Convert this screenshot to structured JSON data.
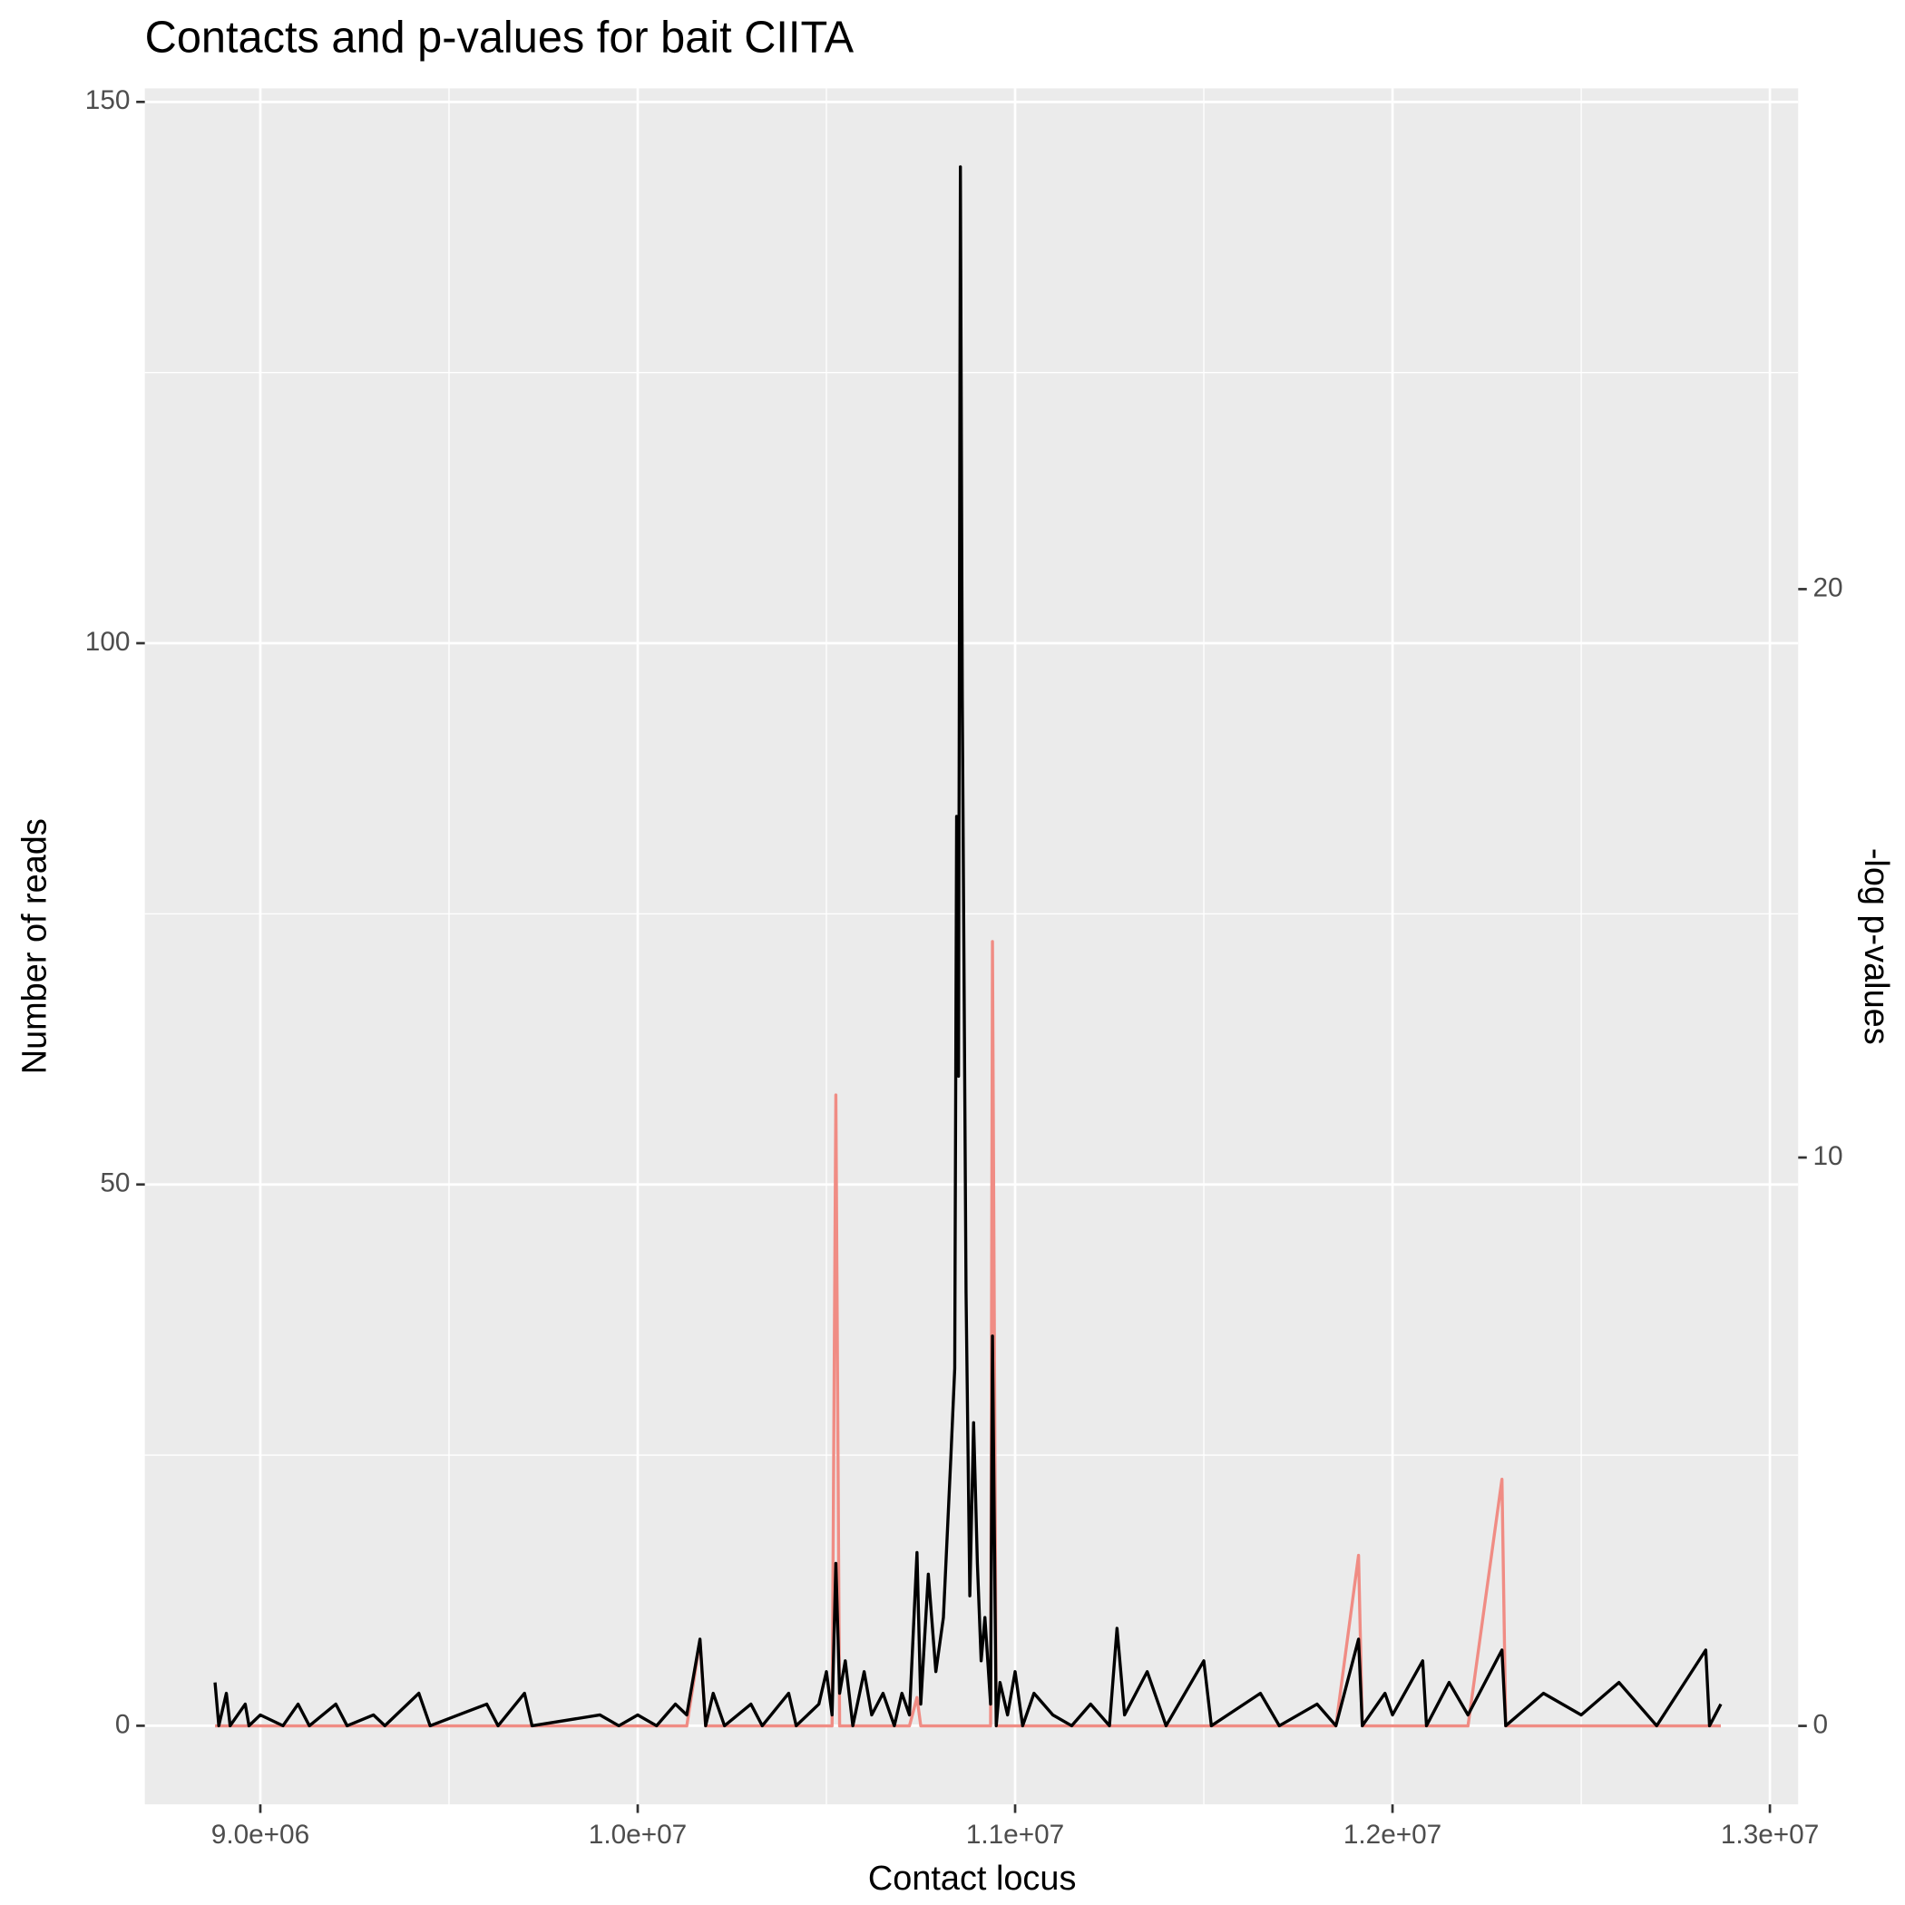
{
  "chart_data": {
    "type": "line",
    "title": "Contacts and p-values for bait CIITA",
    "xlabel": "Contact locus",
    "ylabel": "Number of reads",
    "y2label": "-log p-values",
    "x": [
      8880000,
      8890000,
      8910000,
      8920000,
      8960000,
      8970000,
      9000000,
      9060000,
      9100000,
      9130000,
      9200000,
      9230000,
      9300000,
      9330000,
      9420000,
      9450000,
      9600000,
      9630000,
      9700000,
      9720000,
      9900000,
      9950000,
      10000000,
      10050000,
      10100000,
      10130000,
      10165000,
      10180000,
      10200000,
      10230000,
      10300000,
      10330000,
      10400000,
      10420000,
      10480000,
      10500000,
      10515000,
      10525000,
      10535000,
      10550000,
      10570000,
      10600000,
      10620000,
      10650000,
      10680000,
      10700000,
      10720000,
      10740000,
      10750000,
      10770000,
      10790000,
      10810000,
      10830000,
      10840000,
      10845000,
      10850000,
      10855000,
      10860000,
      10870000,
      10880000,
      10890000,
      10900000,
      10910000,
      10920000,
      10935000,
      10940000,
      10950000,
      10960000,
      10980000,
      11000000,
      11020000,
      11050000,
      11100000,
      11150000,
      11200000,
      11250000,
      11270000,
      11290000,
      11350000,
      11400000,
      11500000,
      11520000,
      11650000,
      11700000,
      11800000,
      11850000,
      11910000,
      11920000,
      11980000,
      12000000,
      12080000,
      12090000,
      12150000,
      12200000,
      12290000,
      12300000,
      12400000,
      12500000,
      12600000,
      12700000,
      12830000,
      12840000,
      12870000
    ],
    "series": [
      {
        "color": "#f08c84",
        "axis": "y2",
        "values": [
          0,
          0,
          0,
          0,
          0,
          0,
          0,
          0,
          0,
          0,
          0,
          0,
          0,
          0,
          0,
          0,
          0,
          0,
          0,
          0,
          0,
          0,
          0,
          0,
          0,
          0,
          1.5,
          0,
          0,
          0,
          0,
          0,
          0,
          0,
          0,
          0,
          0,
          11.1,
          0,
          0,
          0,
          0,
          0,
          0,
          0,
          0,
          0,
          0.5,
          0,
          0,
          0,
          0,
          0,
          0,
          0,
          0,
          0,
          0,
          0,
          0,
          0,
          0,
          0,
          0,
          0,
          13.8,
          0,
          0,
          0,
          0,
          0,
          0,
          0,
          0,
          0,
          0,
          0,
          0,
          0,
          0,
          0,
          0,
          0,
          0,
          0,
          0,
          3.0,
          0,
          0,
          0,
          0,
          0,
          0,
          0,
          4.34,
          0,
          0,
          0,
          0,
          0,
          0,
          0,
          0
        ]
      },
      {
        "color": "#000000",
        "values": [
          4,
          0,
          3,
          0,
          2,
          0,
          1,
          0,
          2,
          0,
          2,
          0,
          1,
          0,
          3,
          0,
          2,
          0,
          3,
          0,
          1,
          0,
          1,
          0,
          2,
          1,
          8,
          0,
          3,
          0,
          2,
          0,
          3,
          0,
          2,
          5,
          1,
          15,
          3,
          6,
          0,
          5,
          1,
          3,
          0,
          3,
          1,
          16,
          2,
          14,
          5,
          10,
          25,
          33,
          84,
          60,
          144,
          95,
          40,
          12,
          28,
          15,
          6,
          10,
          2,
          36,
          0,
          4,
          1,
          5,
          0,
          3,
          1,
          0,
          2,
          0,
          9,
          1,
          5,
          0,
          6,
          0,
          3,
          0,
          2,
          0,
          8,
          0,
          3,
          1,
          6,
          0,
          4,
          1,
          7,
          0,
          3,
          1,
          4,
          0,
          7,
          0,
          2
        ]
      }
    ],
    "xlim": [
      8694000,
      13075000
    ],
    "xticks": [
      {
        "value": 9000000,
        "label": "9.0e+06"
      },
      {
        "value": 10000000,
        "label": "1.0e+07"
      },
      {
        "value": 11000000,
        "label": "1.1e+07"
      },
      {
        "value": 12000000,
        "label": "1.2e+07"
      },
      {
        "value": 13000000,
        "label": "1.3e+07"
      }
    ],
    "xminor": [
      9500000,
      10500000,
      11500000,
      12500000
    ],
    "ylim": [
      -7.26,
      151.25
    ],
    "yticks": [
      0,
      50,
      100,
      150
    ],
    "yminor": [
      25,
      75,
      125
    ],
    "y2lim": [
      -1.38,
      28.81
    ],
    "y2ticks": [
      0,
      10,
      20
    ],
    "grid": true
  }
}
